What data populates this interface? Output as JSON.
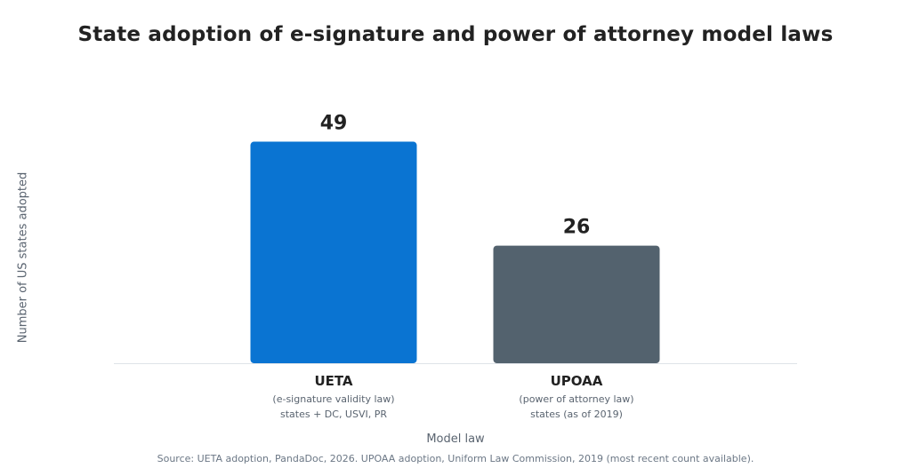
{
  "chart_data": {
    "type": "bar",
    "title": "State adoption of e-signature and power of attorney model laws",
    "xlabel": "Model law",
    "ylabel": "Number of US states adopted",
    "categories": [
      "UETA",
      "UPOAA"
    ],
    "category_notes": [
      [
        "(e-signature validity law)",
        "states + DC, USVI, PR"
      ],
      [
        "(power of attorney law)",
        "states (as of 2019)"
      ]
    ],
    "values": [
      49,
      26
    ],
    "colors": [
      "#0a74d2",
      "#53626e"
    ],
    "ylim": [
      0,
      55
    ],
    "grid": false,
    "data_labels": true
  },
  "source": "Source: UETA adoption, PandaDoc, 2026. UPOAA adoption, Uniform Law Commission, 2019 (most recent count available)."
}
